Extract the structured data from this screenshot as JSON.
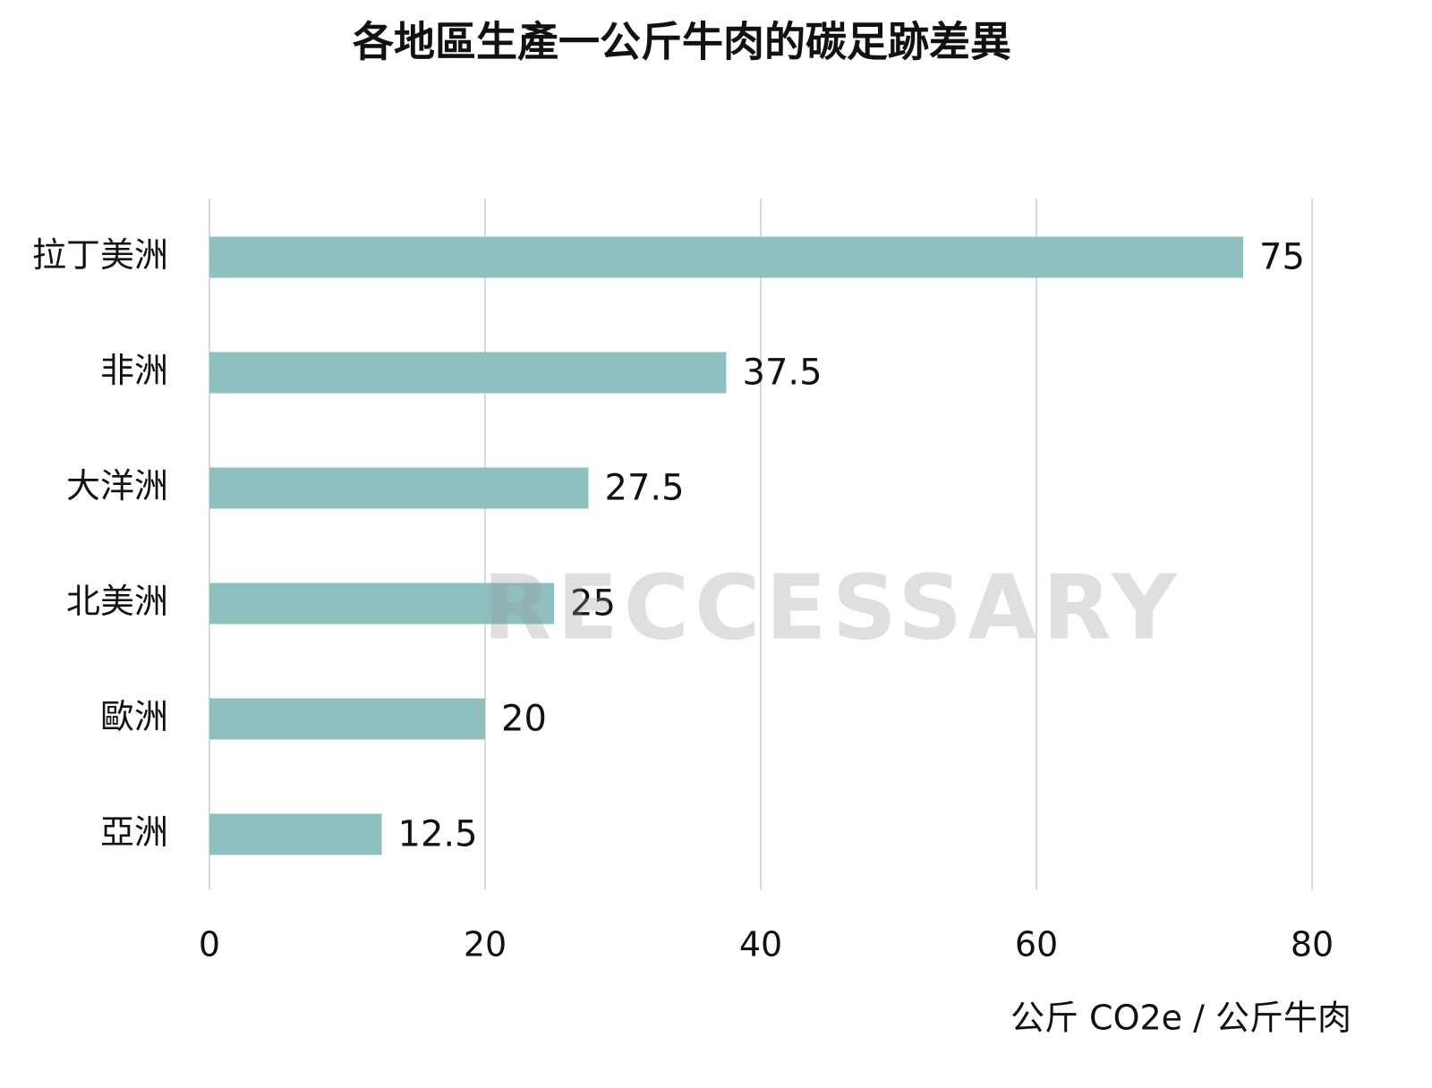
{
  "chart_data": {
    "type": "bar",
    "orientation": "horizontal",
    "title": "各地區生產一公斤牛肉的碳足跡差異",
    "categories": [
      "拉丁美洲",
      "非洲",
      "大洋洲",
      "北美洲",
      "歐洲",
      "亞洲"
    ],
    "values": [
      75,
      37.5,
      27.5,
      25,
      20,
      12.5
    ],
    "color": "#90bfbf",
    "xlim": [
      0,
      80
    ],
    "xticks": [
      0,
      20,
      40,
      60,
      80
    ],
    "grid": true,
    "xlabel": "公斤 CO2e / 公斤牛肉",
    "watermark": "RECCESSARY"
  }
}
